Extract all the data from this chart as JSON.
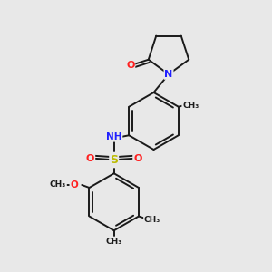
{
  "background_color": "#e8e8e8",
  "bond_color": "#1a1a1a",
  "atom_colors": {
    "N": "#2020ff",
    "O": "#ff2020",
    "S": "#bbbb00",
    "C": "#1a1a1a"
  },
  "figsize": [
    3.0,
    3.0
  ],
  "dpi": 100,
  "xlim": [
    0,
    10
  ],
  "ylim": [
    0,
    10
  ]
}
